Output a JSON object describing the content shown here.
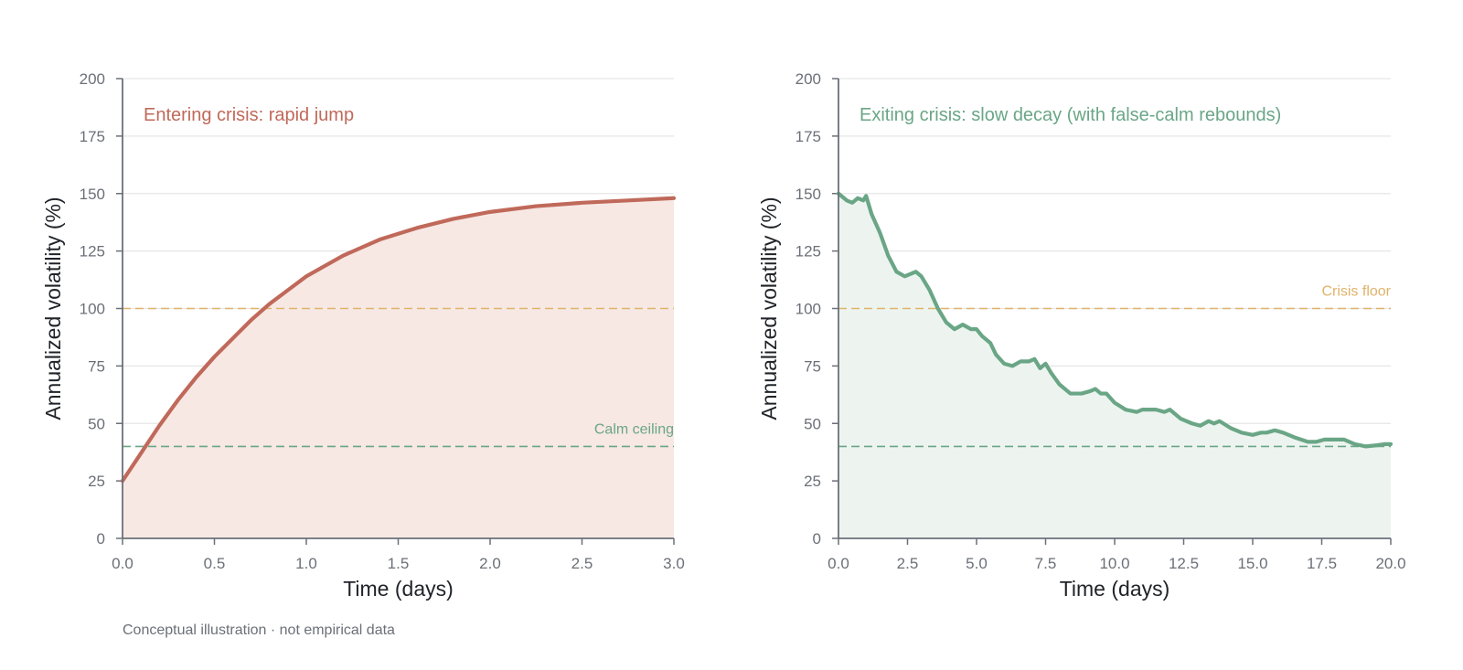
{
  "footnote": "Conceptual illustration · not empirical data",
  "colors": {
    "crisis": "#c0695a",
    "crisis_fill": "#f7e8e4",
    "calm": "#6aa686",
    "calm_fill": "#edf4f0",
    "floor": "#e0b36a",
    "grid": "#e6e6e6",
    "axis": "#6b7078"
  },
  "chart_data": [
    {
      "type": "area",
      "title": "Entering crisis: rapid jump",
      "xlabel": "Time (days)",
      "ylabel": "Annualized volatility (%)",
      "xlim": [
        0,
        3.0
      ],
      "ylim": [
        0,
        200
      ],
      "x_ticks": [
        "0.0",
        "0.5",
        "1.0",
        "1.5",
        "2.0",
        "2.5",
        "3.0"
      ],
      "y_ticks": [
        "0",
        "25",
        "50",
        "75",
        "100",
        "125",
        "150",
        "175",
        "200"
      ],
      "grid": "horizontal",
      "series": [
        {
          "x": [
            0,
            0.1,
            0.2,
            0.3,
            0.4,
            0.5,
            0.6,
            0.7,
            0.8,
            0.9,
            1.0,
            1.2,
            1.4,
            1.6,
            1.8,
            2.0,
            2.25,
            2.5,
            2.75,
            3.0
          ],
          "values": [
            25,
            37,
            49,
            60,
            70,
            79,
            87,
            95,
            102,
            108,
            114,
            123,
            130,
            135,
            139,
            142,
            144.5,
            146,
            147,
            148
          ]
        }
      ],
      "reference_lines": [
        {
          "y": 100,
          "label": "",
          "color": "#e0b36a"
        },
        {
          "y": 40,
          "label": "Calm ceiling",
          "color": "#6aa686"
        }
      ]
    },
    {
      "type": "area",
      "title": "Exiting crisis: slow decay (with false-calm rebounds)",
      "xlabel": "Time (days)",
      "ylabel": "Annualized volatility (%)",
      "xlim": [
        0,
        20.0
      ],
      "ylim": [
        0,
        200
      ],
      "x_ticks": [
        "0.0",
        "2.5",
        "5.0",
        "7.5",
        "10.0",
        "12.5",
        "15.0",
        "17.5",
        "20.0"
      ],
      "y_ticks": [
        "0",
        "25",
        "50",
        "75",
        "100",
        "125",
        "150",
        "175",
        "200"
      ],
      "grid": "horizontal",
      "series": [
        {
          "x": [
            0,
            0.3,
            0.5,
            0.7,
            0.9,
            1.0,
            1.2,
            1.5,
            1.8,
            2.1,
            2.4,
            2.6,
            2.8,
            3.0,
            3.3,
            3.6,
            3.9,
            4.2,
            4.5,
            4.8,
            5.0,
            5.2,
            5.5,
            5.7,
            6.0,
            6.3,
            6.6,
            6.9,
            7.1,
            7.3,
            7.5,
            7.7,
            8.0,
            8.4,
            8.8,
            9.1,
            9.3,
            9.5,
            9.7,
            10.0,
            10.4,
            10.8,
            11.0,
            11.3,
            11.5,
            11.8,
            12.0,
            12.4,
            12.8,
            13.1,
            13.4,
            13.6,
            13.8,
            14.2,
            14.6,
            15.0,
            15.3,
            15.5,
            15.8,
            16.1,
            16.5,
            17.0,
            17.3,
            17.6,
            17.9,
            18.3,
            18.7,
            19.1,
            19.5,
            19.8,
            20.0
          ],
          "values": [
            150,
            147,
            146,
            148,
            147,
            149,
            141,
            133,
            123,
            116,
            114,
            115,
            116,
            114,
            108,
            100,
            94,
            91,
            93,
            91,
            91,
            88,
            85,
            80,
            76,
            75,
            77,
            77,
            78,
            74,
            76,
            72,
            67,
            63,
            63,
            64,
            65,
            63,
            63,
            59,
            56,
            55,
            56,
            56,
            56,
            55,
            56,
            52,
            50,
            49,
            51,
            50,
            51,
            48,
            46,
            45,
            46,
            46,
            47,
            46,
            44,
            42,
            42,
            43,
            43,
            43,
            41,
            40,
            40.5,
            41,
            41
          ]
        }
      ],
      "reference_lines": [
        {
          "y": 100,
          "label": "Crisis floor",
          "color": "#e0b36a"
        },
        {
          "y": 40,
          "label": "",
          "color": "#6aa686"
        }
      ]
    }
  ]
}
